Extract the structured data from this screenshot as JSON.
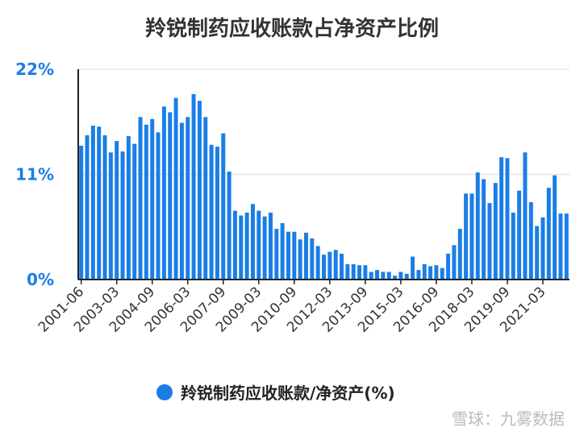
{
  "chart_data": {
    "type": "bar",
    "title": "羚锐制药应收账款占净资产比例",
    "series": [
      {
        "name": "羚锐制药应收账款/净资产(%)",
        "values": [
          14.0,
          15.1,
          16.1,
          16.0,
          15.1,
          13.3,
          14.5,
          13.4,
          15.0,
          14.2,
          17.0,
          16.2,
          16.8,
          15.4,
          18.1,
          17.5,
          19.0,
          16.4,
          17.0,
          19.4,
          18.7,
          17.0,
          14.1,
          13.9,
          15.3,
          11.3,
          7.2,
          6.7,
          7.0,
          7.9,
          7.2,
          6.6,
          7.0,
          5.3,
          5.9,
          5.0,
          5.0,
          4.2,
          4.9,
          4.3,
          3.5,
          2.6,
          2.9,
          3.1,
          2.7,
          1.6,
          1.6,
          1.5,
          1.5,
          0.8,
          1.0,
          0.8,
          0.8,
          0.4,
          0.8,
          0.6,
          2.4,
          1.0,
          1.6,
          1.4,
          1.5,
          1.2,
          2.7,
          3.6,
          5.3,
          9.0,
          9.0,
          11.2,
          10.5,
          8.0,
          10.1,
          12.8,
          12.7,
          7.0,
          9.3,
          13.3,
          8.1,
          5.6,
          6.5,
          9.6,
          10.9,
          6.9,
          6.9
        ]
      }
    ],
    "x_tick_labels": [
      "2001-06",
      "2003-03",
      "2004-09",
      "2006-03",
      "2007-09",
      "2009-03",
      "2010-09",
      "2012-03",
      "2013-09",
      "2015-03",
      "2016-09",
      "2018-03",
      "2019-09",
      "2021-03"
    ],
    "y_tick_labels": [
      "0%",
      "11%",
      "22%"
    ],
    "ylim": [
      0,
      22
    ],
    "grid": true,
    "legend_position": "bottom-center",
    "colors": {
      "bar": "#1a7ee6",
      "axis_text": "#1a7ee6",
      "grid": "#e6e6e6",
      "axis": "#222222"
    }
  },
  "legend": {
    "label": "羚锐制药应收账款/净资产(%)"
  },
  "watermark": {
    "text": "雪球：九雾数据"
  }
}
